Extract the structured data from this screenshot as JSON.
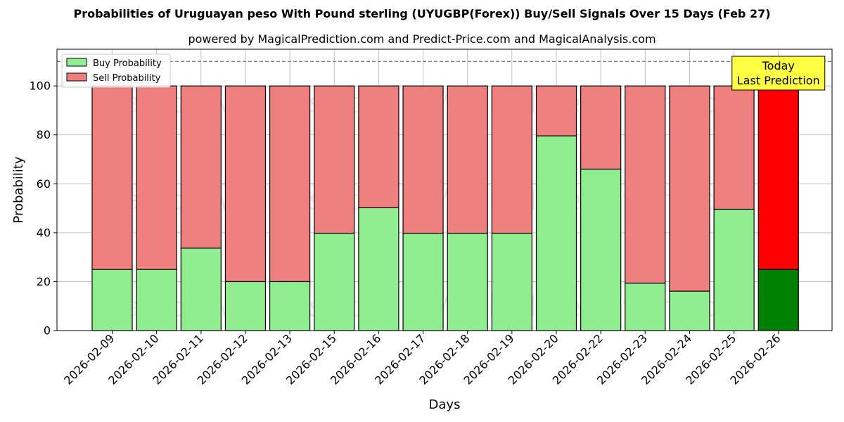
{
  "chart_data": {
    "type": "bar",
    "stacked": true,
    "title": "Probabilities of Uruguayan peso With Pound sterling (UYUGBP(Forex)) Buy/Sell Signals Over 15 Days (Feb 27)",
    "subtitle": "powered by MagicalPrediction.com and Predict-Price.com and MagicalAnalysis.com",
    "xlabel": "Days",
    "ylabel": "Probability",
    "ylim": [
      0,
      115
    ],
    "yticks": [
      0,
      20,
      40,
      60,
      80,
      100
    ],
    "grid": true,
    "legend_position": "top-left",
    "reference_line": 110,
    "categories": [
      "2026-02-09",
      "2026-02-10",
      "2026-02-11",
      "2026-02-12",
      "2026-02-13",
      "2026-02-15",
      "2026-02-16",
      "2026-02-17",
      "2026-02-18",
      "2026-02-19",
      "2026-02-20",
      "2026-02-22",
      "2026-02-23",
      "2026-02-24",
      "2026-02-25",
      "2026-02-26"
    ],
    "series": [
      {
        "name": "Buy Probability",
        "values": [
          25,
          25,
          33.7,
          20,
          20,
          39.8,
          50.2,
          39.8,
          39.8,
          39.8,
          79.6,
          66,
          19.4,
          16.1,
          49.6,
          25
        ]
      },
      {
        "name": "Sell Probability",
        "values": [
          75,
          75,
          66.3,
          80,
          80,
          60.2,
          49.8,
          60.2,
          60.2,
          60.2,
          20.4,
          34,
          80.6,
          83.9,
          50.4,
          75
        ]
      }
    ],
    "colors": {
      "buy": "#90ee90",
      "sell": "#f08080",
      "buy_highlight": "#008000",
      "sell_highlight": "#ff0000",
      "annotation_bg": "#ffff44"
    },
    "annotation": {
      "line1": "Today",
      "line2": "Last Prediction",
      "category": "2026-02-26"
    },
    "watermarks": [
      "MagicalAnalysis.com",
      "MagicalPrediction.com"
    ]
  }
}
